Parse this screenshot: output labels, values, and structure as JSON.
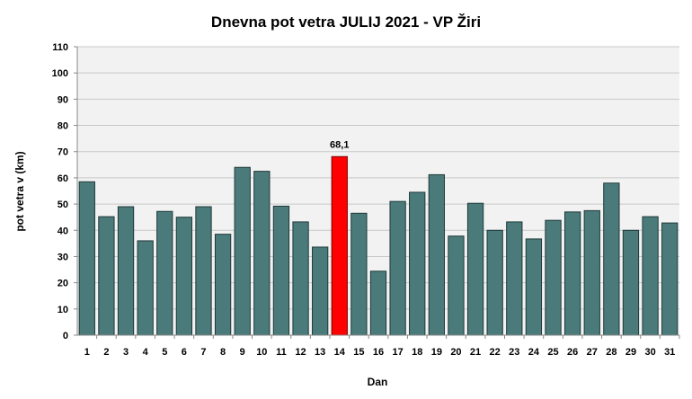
{
  "chart_data": {
    "type": "bar",
    "title": "Dnevna pot vetra JULIJ 2021 - VP Žiri",
    "xlabel": "Dan",
    "ylabel": "pot vetra  v (km)",
    "ylim": [
      0,
      110
    ],
    "yticks": [
      0,
      10,
      20,
      30,
      40,
      50,
      60,
      70,
      80,
      90,
      100,
      110
    ],
    "grid": true,
    "legend": "none",
    "categories": [
      "1",
      "2",
      "3",
      "4",
      "5",
      "6",
      "7",
      "8",
      "9",
      "10",
      "11",
      "12",
      "13",
      "14",
      "15",
      "16",
      "17",
      "18",
      "19",
      "20",
      "21",
      "22",
      "23",
      "24",
      "25",
      "26",
      "27",
      "28",
      "29",
      "30",
      "31"
    ],
    "values": [
      58.5,
      45.2,
      49,
      36,
      47.2,
      45,
      49,
      38.5,
      64,
      62.5,
      49.2,
      43.2,
      33.6,
      68.1,
      46.5,
      24.4,
      51,
      54.5,
      61.2,
      37.8,
      50.3,
      40,
      43.2,
      36.7,
      43.8,
      47,
      47.5,
      58,
      40,
      45.2,
      42.8
    ],
    "highlight_index": 13,
    "highlight_label": "68,1",
    "colors": {
      "bar": "#4a7b7a",
      "bar_stroke": "#1f3838",
      "highlight": "#ff0000",
      "highlight_stroke": "#7a0000",
      "plot_bg": "#f2f2f2",
      "grid": "#c8c8c8"
    }
  }
}
